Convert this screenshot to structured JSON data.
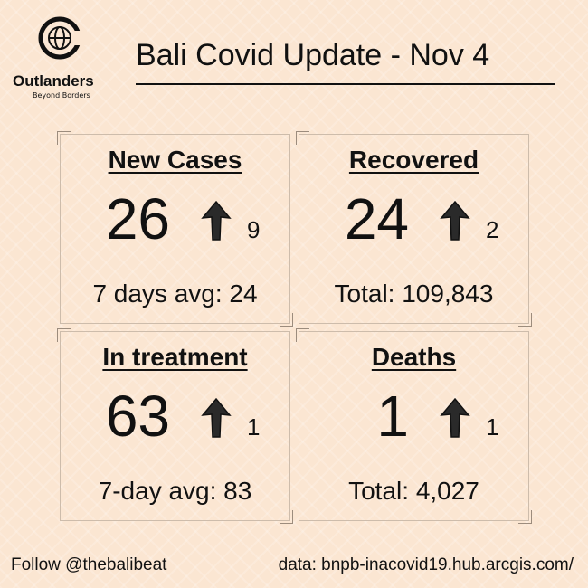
{
  "logo": {
    "name": "Outlanders",
    "tagline": "Beyond Borders"
  },
  "title": "Bali Covid Update - Nov 4",
  "cards": [
    {
      "title": "New Cases",
      "value": "26",
      "change": "9",
      "note": "7 days avg: 24"
    },
    {
      "title": "Recovered",
      "value": "24",
      "change": "2",
      "note": "Total: 109,843"
    },
    {
      "title": "In treatment",
      "value": "63",
      "change": "1",
      "note": "7-day avg: 83"
    },
    {
      "title": "Deaths",
      "value": "1",
      "change": "1",
      "note": "Total: 4,027"
    }
  ],
  "footer": {
    "follow": "Follow @thebalibeat",
    "source": "data: bnpb-inacovid19.hub.arcgis.com/"
  }
}
